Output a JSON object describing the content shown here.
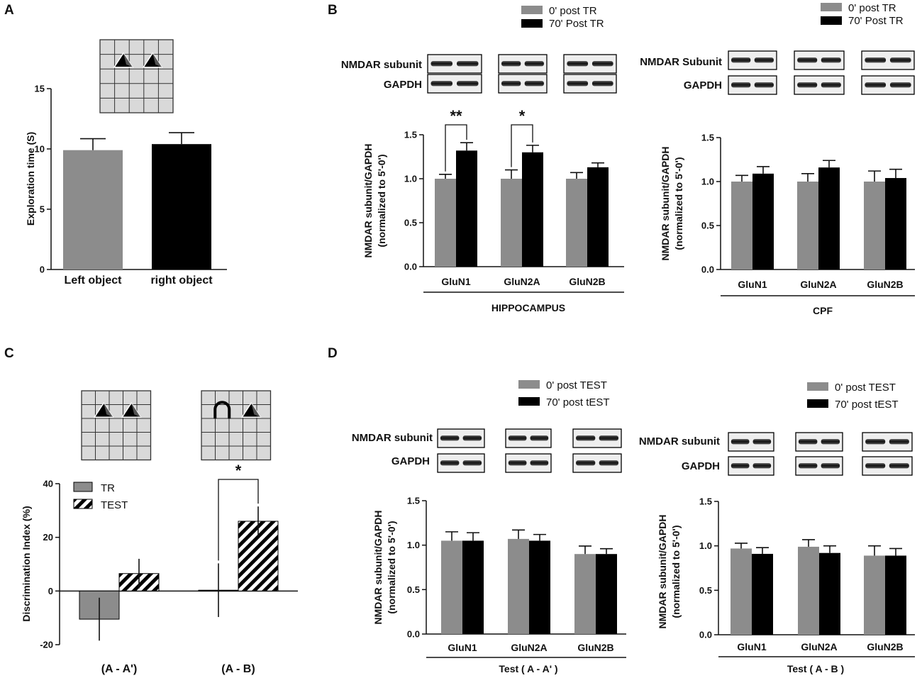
{
  "colors": {
    "gray": "#8c8c8c",
    "black": "#000000",
    "hatch_bg": "#ffffff",
    "grid_fill": "#d9d9d9",
    "axis": "#111111"
  },
  "panel_labels": {
    "a": "A",
    "b": "B",
    "c": "C",
    "d": "D"
  },
  "chart_data": [
    {
      "id": "A",
      "type": "bar",
      "title": "",
      "ylabel": "Exploration time (S)",
      "xlabel": "",
      "ylim": [
        0,
        15
      ],
      "yticks": [
        0,
        5,
        10,
        15
      ],
      "categories": [
        "Left object",
        "right object"
      ],
      "values": [
        9.9,
        10.4
      ],
      "errors": [
        0.95,
        0.95
      ],
      "bar_colors": [
        "gray",
        "black"
      ]
    },
    {
      "id": "B-hippocampus",
      "type": "bar",
      "ylabel": "NMDAR subunit/GAPDH",
      "ylabel2": "(normalized to 5'-0')",
      "region_label": "HIPPOCAMPUS",
      "ylim": [
        0,
        1.5
      ],
      "yticks": [
        "0.0",
        "0.5",
        "1.0",
        "1.5"
      ],
      "categories": [
        "GluN1",
        "GluN2A",
        "GluN2B"
      ],
      "series": [
        {
          "name": "0' post TR",
          "values": [
            1.0,
            1.0,
            1.0
          ],
          "errors": [
            0.05,
            0.1,
            0.07
          ]
        },
        {
          "name": "70' Post TR",
          "values": [
            1.32,
            1.3,
            1.13
          ],
          "errors": [
            0.09,
            0.08,
            0.05
          ]
        }
      ],
      "significance": [
        {
          "category": "GluN1",
          "label": "**"
        },
        {
          "category": "GluN2A",
          "label": "*"
        }
      ],
      "blot_labels": [
        "NMDAR subunit",
        "GAPDH"
      ]
    },
    {
      "id": "B-CPF",
      "type": "bar",
      "ylabel": "NMDAR subunit/GAPDH",
      "ylabel2": "(normalized to 5'-0')",
      "region_label": "CPF",
      "ylim": [
        0,
        1.5
      ],
      "yticks": [
        "0.0",
        "0.5",
        "1.0",
        "1.5"
      ],
      "categories": [
        "GluN1",
        "GluN2A",
        "GluN2B"
      ],
      "series": [
        {
          "name": "0' post TR",
          "values": [
            1.0,
            1.0,
            1.0
          ],
          "errors": [
            0.07,
            0.09,
            0.12
          ]
        },
        {
          "name": "70' Post TR",
          "values": [
            1.09,
            1.16,
            1.04
          ],
          "errors": [
            0.08,
            0.08,
            0.1
          ]
        }
      ],
      "blot_labels": [
        "NMDAR Subunit",
        "GAPDH"
      ]
    },
    {
      "id": "C",
      "type": "bar",
      "ylabel": "Discrimination Index (%)",
      "ylim": [
        -20,
        40
      ],
      "yticks": [
        "-20",
        "0",
        "20",
        "40"
      ],
      "categories": [
        "(A - A')",
        "(A - B)"
      ],
      "series": [
        {
          "name": "TR",
          "values": [
            -10.5,
            0.3
          ],
          "errors": [
            8,
            10
          ]
        },
        {
          "name": "TEST",
          "values": [
            6.5,
            26
          ],
          "errors": [
            5.5,
            5.5
          ]
        }
      ],
      "significance": [
        {
          "category": "(A - B)",
          "label": "*"
        }
      ]
    },
    {
      "id": "D-AA",
      "type": "bar",
      "ylabel": "NMDAR subunit/GAPDH",
      "ylabel2": "(normalized to 5'-0')",
      "region_label": "Test ( A - A' )",
      "ylim": [
        0,
        1.5
      ],
      "yticks": [
        "0.0",
        "0.5",
        "1.0",
        "1.5"
      ],
      "categories": [
        "GluN1",
        "GluN2A",
        "GluN2B"
      ],
      "series": [
        {
          "name": "0' post TEST",
          "values": [
            1.05,
            1.07,
            0.9
          ],
          "errors": [
            0.1,
            0.1,
            0.09
          ]
        },
        {
          "name": "70' post tEST",
          "values": [
            1.05,
            1.05,
            0.9
          ],
          "errors": [
            0.09,
            0.07,
            0.06
          ]
        }
      ],
      "blot_labels": [
        "NMDAR subunit",
        "GAPDH"
      ]
    },
    {
      "id": "D-AB",
      "type": "bar",
      "ylabel": "NMDAR subunit/GAPDH",
      "ylabel2": "(normalized to 5'-0')",
      "region_label": "Test ( A - B )",
      "ylim": [
        0,
        1.5
      ],
      "yticks": [
        "0.0",
        "0.5",
        "1.0",
        "1.5"
      ],
      "categories": [
        "GluN1",
        "GluN2A",
        "GluN2B"
      ],
      "series": [
        {
          "name": "0' post TEST",
          "values": [
            0.97,
            0.99,
            0.89
          ],
          "errors": [
            0.06,
            0.08,
            0.11
          ]
        },
        {
          "name": "70' post tEST",
          "values": [
            0.91,
            0.92,
            0.89
          ],
          "errors": [
            0.07,
            0.08,
            0.08
          ]
        }
      ],
      "blot_labels": [
        "NMDAR subunit",
        "GAPDH"
      ]
    }
  ]
}
